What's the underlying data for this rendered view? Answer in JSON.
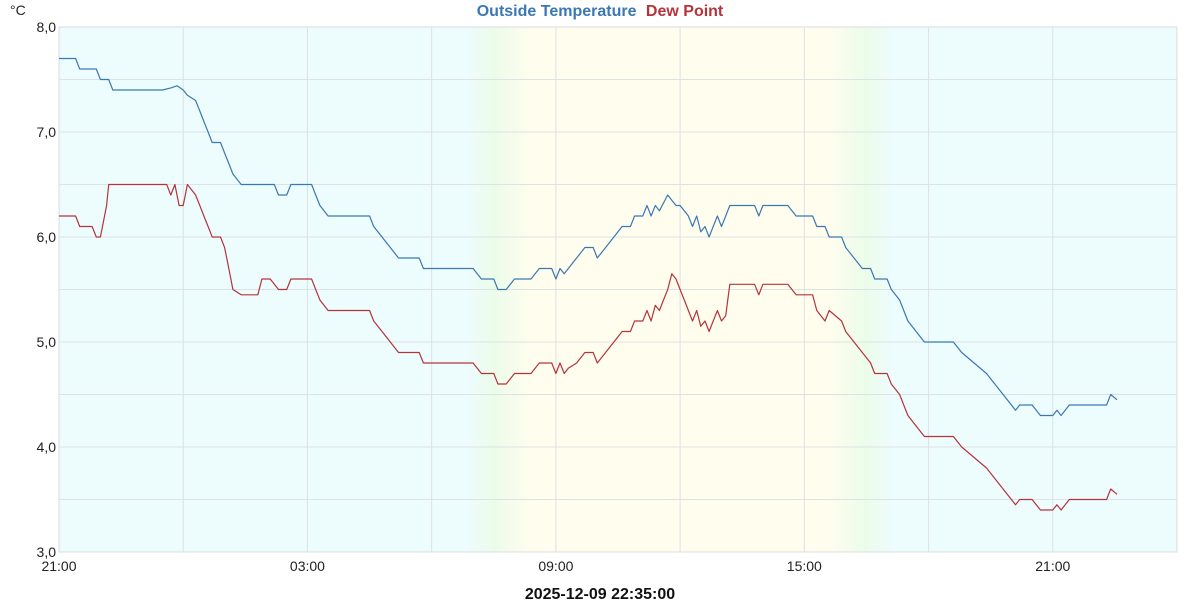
{
  "chart_data": {
    "type": "line",
    "title_parts": [
      {
        "text": "Outside Temperature",
        "color": "#3b78b3"
      },
      {
        "text": "Dew Point",
        "color": "#b5343c"
      }
    ],
    "y_unit": "°C",
    "ylim": [
      3.0,
      8.0
    ],
    "y_ticks": [
      "3,0",
      "4,0",
      "5,0",
      "6,0",
      "7,0",
      "8,0"
    ],
    "xlim": [
      0,
      27
    ],
    "x_ticks": [
      {
        "x": 0,
        "label": "21:00"
      },
      {
        "x": 6,
        "label": "03:00"
      },
      {
        "x": 12,
        "label": "09:00"
      },
      {
        "x": 18,
        "label": "15:00"
      },
      {
        "x": 24,
        "label": "21:00"
      }
    ],
    "grid": true,
    "daylight": {
      "start": 10.5,
      "end": 19.5,
      "night_color": "#edfcfc",
      "day_color": "#fffdee",
      "twilight_color": "#ecfcea"
    },
    "footer": "2025-12-09 22:35:00",
    "series": [
      {
        "name": "Outside Temperature",
        "color": "#3b78b3",
        "points": [
          [
            0,
            7.7
          ],
          [
            0.4,
            7.7
          ],
          [
            0.5,
            7.6
          ],
          [
            0.9,
            7.6
          ],
          [
            1.0,
            7.5
          ],
          [
            1.2,
            7.5
          ],
          [
            1.3,
            7.4
          ],
          [
            2.5,
            7.4
          ],
          [
            2.7,
            7.42
          ],
          [
            2.85,
            7.44
          ],
          [
            3.0,
            7.4
          ],
          [
            3.1,
            7.35
          ],
          [
            3.3,
            7.3
          ],
          [
            3.4,
            7.2
          ],
          [
            3.5,
            7.1
          ],
          [
            3.6,
            7.0
          ],
          [
            3.7,
            6.9
          ],
          [
            3.9,
            6.9
          ],
          [
            4.0,
            6.8
          ],
          [
            4.1,
            6.7
          ],
          [
            4.2,
            6.6
          ],
          [
            4.4,
            6.5
          ],
          [
            4.9,
            6.5
          ],
          [
            5.0,
            6.5
          ],
          [
            5.2,
            6.5
          ],
          [
            5.3,
            6.4
          ],
          [
            5.5,
            6.4
          ],
          [
            5.6,
            6.5
          ],
          [
            6.1,
            6.5
          ],
          [
            6.2,
            6.4
          ],
          [
            6.3,
            6.3
          ],
          [
            6.5,
            6.2
          ],
          [
            7.5,
            6.2
          ],
          [
            7.6,
            6.1
          ],
          [
            7.8,
            6.0
          ],
          [
            8.0,
            5.9
          ],
          [
            8.2,
            5.8
          ],
          [
            8.7,
            5.8
          ],
          [
            8.8,
            5.7
          ],
          [
            10.0,
            5.7
          ],
          [
            10.2,
            5.6
          ],
          [
            10.5,
            5.6
          ],
          [
            10.6,
            5.5
          ],
          [
            10.8,
            5.5
          ],
          [
            11.0,
            5.6
          ],
          [
            11.4,
            5.6
          ],
          [
            11.6,
            5.7
          ],
          [
            11.9,
            5.7
          ],
          [
            12.0,
            5.6
          ],
          [
            12.1,
            5.7
          ],
          [
            12.2,
            5.65
          ],
          [
            12.3,
            5.7
          ],
          [
            12.5,
            5.8
          ],
          [
            12.7,
            5.9
          ],
          [
            12.9,
            5.9
          ],
          [
            13.0,
            5.8
          ],
          [
            13.2,
            5.9
          ],
          [
            13.4,
            6.0
          ],
          [
            13.6,
            6.1
          ],
          [
            13.8,
            6.1
          ],
          [
            13.9,
            6.2
          ],
          [
            14.1,
            6.2
          ],
          [
            14.2,
            6.3
          ],
          [
            14.3,
            6.2
          ],
          [
            14.4,
            6.3
          ],
          [
            14.5,
            6.25
          ],
          [
            14.7,
            6.4
          ],
          [
            14.9,
            6.3
          ],
          [
            15.0,
            6.3
          ],
          [
            15.2,
            6.2
          ],
          [
            15.3,
            6.1
          ],
          [
            15.4,
            6.2
          ],
          [
            15.5,
            6.05
          ],
          [
            15.6,
            6.1
          ],
          [
            15.7,
            6.0
          ],
          [
            15.8,
            6.1
          ],
          [
            15.9,
            6.2
          ],
          [
            16.0,
            6.1
          ],
          [
            16.1,
            6.2
          ],
          [
            16.2,
            6.3
          ],
          [
            16.8,
            6.3
          ],
          [
            16.9,
            6.2
          ],
          [
            17.0,
            6.3
          ],
          [
            17.6,
            6.3
          ],
          [
            17.8,
            6.2
          ],
          [
            18.2,
            6.2
          ],
          [
            18.3,
            6.1
          ],
          [
            18.5,
            6.1
          ],
          [
            18.6,
            6.0
          ],
          [
            18.9,
            6.0
          ],
          [
            19.0,
            5.9
          ],
          [
            19.2,
            5.8
          ],
          [
            19.4,
            5.7
          ],
          [
            19.6,
            5.7
          ],
          [
            19.7,
            5.6
          ],
          [
            20.0,
            5.6
          ],
          [
            20.1,
            5.5
          ],
          [
            20.3,
            5.4
          ],
          [
            20.5,
            5.2
          ],
          [
            20.7,
            5.1
          ],
          [
            20.9,
            5.0
          ],
          [
            21.6,
            5.0
          ],
          [
            21.8,
            4.9
          ],
          [
            22.1,
            4.8
          ],
          [
            22.4,
            4.7
          ],
          [
            22.6,
            4.6
          ],
          [
            22.8,
            4.5
          ],
          [
            23.0,
            4.4
          ],
          [
            23.1,
            4.35
          ],
          [
            23.2,
            4.4
          ],
          [
            23.5,
            4.4
          ],
          [
            23.7,
            4.3
          ],
          [
            24.0,
            4.3
          ],
          [
            24.1,
            4.35
          ],
          [
            24.2,
            4.3
          ],
          [
            24.4,
            4.4
          ],
          [
            24.6,
            4.4
          ],
          [
            25.0,
            4.4
          ],
          [
            25.2,
            4.4
          ],
          [
            25.3,
            4.4
          ],
          [
            25.4,
            4.5
          ],
          [
            25.55,
            4.45
          ]
        ]
      },
      {
        "name": "Dew Point",
        "color": "#b5343c",
        "points": [
          [
            0,
            6.2
          ],
          [
            0.4,
            6.2
          ],
          [
            0.5,
            6.1
          ],
          [
            0.8,
            6.1
          ],
          [
            0.9,
            6.0
          ],
          [
            1.0,
            6.0
          ],
          [
            1.05,
            6.1
          ],
          [
            1.15,
            6.3
          ],
          [
            1.2,
            6.5
          ],
          [
            2.6,
            6.5
          ],
          [
            2.7,
            6.4
          ],
          [
            2.8,
            6.5
          ],
          [
            2.9,
            6.3
          ],
          [
            3.0,
            6.3
          ],
          [
            3.1,
            6.5
          ],
          [
            3.2,
            6.45
          ],
          [
            3.3,
            6.4
          ],
          [
            3.4,
            6.3
          ],
          [
            3.5,
            6.2
          ],
          [
            3.6,
            6.1
          ],
          [
            3.7,
            6.0
          ],
          [
            3.9,
            6.0
          ],
          [
            4.0,
            5.9
          ],
          [
            4.1,
            5.7
          ],
          [
            4.2,
            5.5
          ],
          [
            4.4,
            5.45
          ],
          [
            4.8,
            5.45
          ],
          [
            4.9,
            5.6
          ],
          [
            5.1,
            5.6
          ],
          [
            5.3,
            5.5
          ],
          [
            5.5,
            5.5
          ],
          [
            5.6,
            5.6
          ],
          [
            6.1,
            5.6
          ],
          [
            6.2,
            5.5
          ],
          [
            6.3,
            5.4
          ],
          [
            6.5,
            5.3
          ],
          [
            7.5,
            5.3
          ],
          [
            7.6,
            5.2
          ],
          [
            7.8,
            5.1
          ],
          [
            8.0,
            5.0
          ],
          [
            8.2,
            4.9
          ],
          [
            8.7,
            4.9
          ],
          [
            8.8,
            4.8
          ],
          [
            10.0,
            4.8
          ],
          [
            10.2,
            4.7
          ],
          [
            10.5,
            4.7
          ],
          [
            10.6,
            4.6
          ],
          [
            10.8,
            4.6
          ],
          [
            11.0,
            4.7
          ],
          [
            11.4,
            4.7
          ],
          [
            11.6,
            4.8
          ],
          [
            11.9,
            4.8
          ],
          [
            12.0,
            4.7
          ],
          [
            12.1,
            4.8
          ],
          [
            12.2,
            4.7
          ],
          [
            12.3,
            4.75
          ],
          [
            12.5,
            4.8
          ],
          [
            12.7,
            4.9
          ],
          [
            12.9,
            4.9
          ],
          [
            13.0,
            4.8
          ],
          [
            13.2,
            4.9
          ],
          [
            13.4,
            5.0
          ],
          [
            13.6,
            5.1
          ],
          [
            13.8,
            5.1
          ],
          [
            13.9,
            5.2
          ],
          [
            14.1,
            5.2
          ],
          [
            14.2,
            5.3
          ],
          [
            14.3,
            5.2
          ],
          [
            14.4,
            5.35
          ],
          [
            14.5,
            5.3
          ],
          [
            14.6,
            5.4
          ],
          [
            14.7,
            5.5
          ],
          [
            14.8,
            5.65
          ],
          [
            14.9,
            5.6
          ],
          [
            15.0,
            5.5
          ],
          [
            15.1,
            5.4
          ],
          [
            15.2,
            5.3
          ],
          [
            15.3,
            5.2
          ],
          [
            15.4,
            5.3
          ],
          [
            15.5,
            5.15
          ],
          [
            15.6,
            5.2
          ],
          [
            15.7,
            5.1
          ],
          [
            15.8,
            5.2
          ],
          [
            15.9,
            5.3
          ],
          [
            16.0,
            5.2
          ],
          [
            16.1,
            5.25
          ],
          [
            16.2,
            5.55
          ],
          [
            16.8,
            5.55
          ],
          [
            16.9,
            5.45
          ],
          [
            17.0,
            5.55
          ],
          [
            17.6,
            5.55
          ],
          [
            17.8,
            5.45
          ],
          [
            18.2,
            5.45
          ],
          [
            18.3,
            5.3
          ],
          [
            18.5,
            5.2
          ],
          [
            18.6,
            5.3
          ],
          [
            18.9,
            5.2
          ],
          [
            19.0,
            5.1
          ],
          [
            19.2,
            5.0
          ],
          [
            19.4,
            4.9
          ],
          [
            19.6,
            4.8
          ],
          [
            19.7,
            4.7
          ],
          [
            20.0,
            4.7
          ],
          [
            20.1,
            4.6
          ],
          [
            20.3,
            4.5
          ],
          [
            20.5,
            4.3
          ],
          [
            20.7,
            4.2
          ],
          [
            20.9,
            4.1
          ],
          [
            21.6,
            4.1
          ],
          [
            21.8,
            4.0
          ],
          [
            22.1,
            3.9
          ],
          [
            22.4,
            3.8
          ],
          [
            22.6,
            3.7
          ],
          [
            22.8,
            3.6
          ],
          [
            23.0,
            3.5
          ],
          [
            23.1,
            3.45
          ],
          [
            23.2,
            3.5
          ],
          [
            23.5,
            3.5
          ],
          [
            23.7,
            3.4
          ],
          [
            24.0,
            3.4
          ],
          [
            24.1,
            3.45
          ],
          [
            24.2,
            3.4
          ],
          [
            24.4,
            3.5
          ],
          [
            24.6,
            3.5
          ],
          [
            25.0,
            3.5
          ],
          [
            25.2,
            3.5
          ],
          [
            25.3,
            3.5
          ],
          [
            25.4,
            3.6
          ],
          [
            25.55,
            3.55
          ]
        ]
      }
    ]
  }
}
